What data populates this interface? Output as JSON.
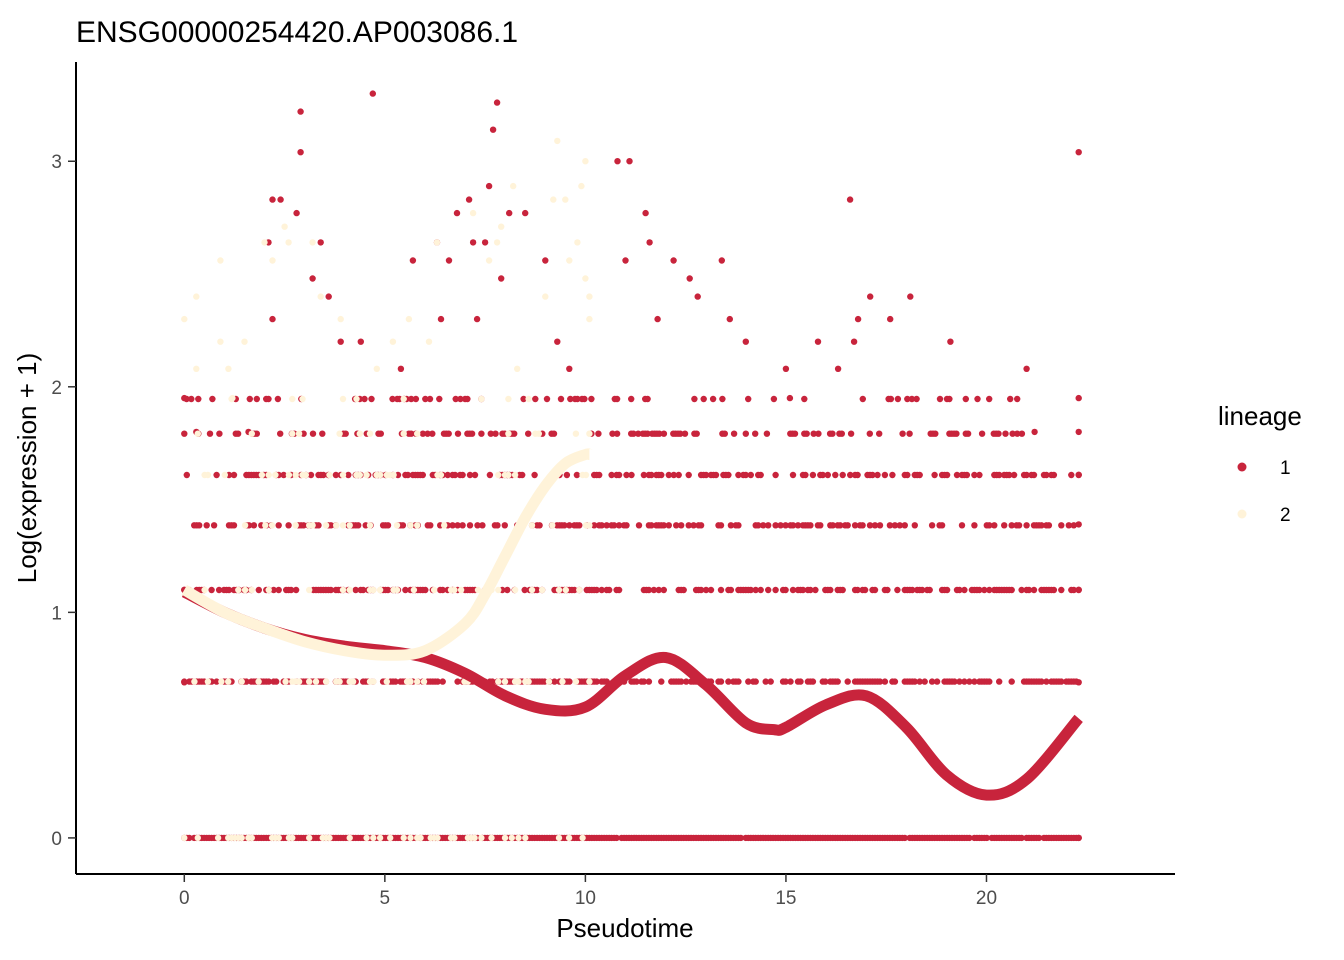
{
  "chart_data": {
    "type": "scatter",
    "title": "ENSG00000254420.AP003086.1",
    "xlabel": "Pseudotime",
    "ylabel": "Log(expression + 1)",
    "xlim": [
      -2.7,
      24.7
    ],
    "ylim": [
      -0.16,
      3.44
    ],
    "xticks": [
      0,
      5,
      10,
      15,
      20
    ],
    "yticks": [
      0,
      1,
      2,
      3
    ],
    "grid": false,
    "legend": {
      "title": "lineage",
      "position": "right",
      "entries": [
        {
          "label": "1",
          "color": "#c8243c"
        },
        {
          "label": "2",
          "color": "#fff3d9"
        }
      ]
    },
    "expression_levels": [
      0,
      0.693,
      1.099,
      1.386,
      1.609,
      1.792,
      1.946,
      2.079,
      2.197,
      2.303,
      2.398,
      2.485,
      2.565,
      2.639,
      2.708,
      2.773,
      2.833,
      2.89,
      2.996,
      3.045,
      3.091,
      3.135,
      3.219,
      3.258,
      3.296
    ],
    "series": [
      {
        "name": "1",
        "color": "#c8243c",
        "x_range": [
          0,
          22.3
        ],
        "points": [
          [
            0,
            0.69
          ],
          [
            0,
            1.1
          ],
          [
            0,
            1.95
          ],
          [
            0.3,
            1.8
          ],
          [
            1.6,
            1.8
          ],
          [
            2.2,
            2.3
          ],
          [
            2.1,
            2.64
          ],
          [
            2.2,
            2.83
          ],
          [
            2.4,
            2.83
          ],
          [
            2.8,
            2.77
          ],
          [
            2.9,
            3.22
          ],
          [
            2.9,
            3.04
          ],
          [
            3.2,
            2.48
          ],
          [
            3.4,
            2.64
          ],
          [
            3.6,
            2.4
          ],
          [
            3.9,
            2.2
          ],
          [
            4.4,
            2.2
          ],
          [
            4.7,
            3.3
          ],
          [
            5.4,
            2.08
          ],
          [
            5.7,
            2.56
          ],
          [
            6.3,
            2.64
          ],
          [
            6.4,
            2.3
          ],
          [
            6.6,
            2.56
          ],
          [
            6.8,
            2.77
          ],
          [
            7.1,
            2.83
          ],
          [
            7.2,
            2.64
          ],
          [
            7.3,
            2.3
          ],
          [
            7.5,
            2.64
          ],
          [
            7.6,
            2.89
          ],
          [
            7.7,
            3.14
          ],
          [
            7.8,
            3.26
          ],
          [
            7.9,
            2.48
          ],
          [
            8.1,
            2.77
          ],
          [
            8.5,
            2.77
          ],
          [
            9.0,
            2.56
          ],
          [
            9.3,
            2.2
          ],
          [
            9.6,
            2.08
          ],
          [
            10.8,
            3.0
          ],
          [
            11.1,
            3.0
          ],
          [
            11.0,
            2.56
          ],
          [
            11.5,
            2.77
          ],
          [
            11.6,
            2.64
          ],
          [
            11.8,
            2.3
          ],
          [
            12.2,
            2.56
          ],
          [
            12.6,
            2.48
          ],
          [
            12.8,
            2.4
          ],
          [
            13.4,
            2.56
          ],
          [
            13.6,
            2.3
          ],
          [
            14.0,
            2.2
          ],
          [
            15.0,
            2.08
          ],
          [
            15.1,
            1.95
          ],
          [
            15.8,
            2.2
          ],
          [
            16.3,
            2.08
          ],
          [
            16.7,
            2.2
          ],
          [
            16.6,
            2.83
          ],
          [
            16.8,
            2.3
          ],
          [
            17.1,
            2.4
          ],
          [
            17.6,
            2.3
          ],
          [
            18.1,
            2.4
          ],
          [
            19.1,
            2.2
          ],
          [
            21.0,
            2.08
          ],
          [
            21.2,
            1.8
          ],
          [
            22.3,
            3.04
          ],
          [
            22.3,
            1.95
          ],
          [
            22.3,
            1.8
          ],
          [
            22.3,
            1.61
          ],
          [
            22.3,
            1.39
          ],
          [
            22.3,
            1.1
          ],
          [
            22.3,
            0.69
          ],
          [
            22.3,
            0
          ]
        ]
      },
      {
        "name": "2",
        "color": "#fff3d9",
        "x_range": [
          0,
          10.1
        ],
        "points": [
          [
            0,
            2.3
          ],
          [
            0.3,
            2.08
          ],
          [
            0.3,
            2.4
          ],
          [
            0.9,
            2.56
          ],
          [
            0.9,
            2.2
          ],
          [
            1.1,
            2.08
          ],
          [
            1.2,
            1.95
          ],
          [
            1.5,
            2.2
          ],
          [
            2.0,
            2.64
          ],
          [
            2.2,
            2.56
          ],
          [
            2.5,
            2.71
          ],
          [
            2.6,
            2.64
          ],
          [
            3.2,
            2.64
          ],
          [
            3.4,
            2.4
          ],
          [
            3.9,
            2.3
          ],
          [
            4.8,
            2.08
          ],
          [
            5.2,
            2.2
          ],
          [
            5.6,
            2.3
          ],
          [
            6.1,
            2.2
          ],
          [
            6.3,
            2.64
          ],
          [
            7.2,
            2.77
          ],
          [
            7.6,
            2.56
          ],
          [
            7.8,
            2.64
          ],
          [
            7.9,
            2.71
          ],
          [
            8.2,
            2.89
          ],
          [
            8.3,
            2.08
          ],
          [
            9.0,
            2.4
          ],
          [
            9.2,
            2.83
          ],
          [
            9.3,
            3.09
          ],
          [
            9.5,
            2.83
          ],
          [
            9.6,
            2.56
          ],
          [
            9.8,
            2.64
          ],
          [
            9.9,
            2.89
          ],
          [
            10.0,
            2.48
          ],
          [
            10.0,
            3.0
          ],
          [
            10.1,
            2.4
          ],
          [
            10.1,
            2.3
          ]
        ]
      }
    ],
    "fitted_curves": [
      {
        "lineage": "1",
        "color": "#c8243c",
        "x": [
          0,
          1,
          2,
          3,
          4,
          5,
          6,
          7,
          8,
          9,
          10,
          11,
          12,
          13,
          14,
          14.7,
          15,
          16,
          17,
          18,
          19,
          20,
          21,
          22.3
        ],
        "y": [
          1.09,
          1.0,
          0.93,
          0.88,
          0.85,
          0.83,
          0.8,
          0.73,
          0.63,
          0.57,
          0.58,
          0.72,
          0.8,
          0.68,
          0.51,
          0.48,
          0.49,
          0.59,
          0.63,
          0.49,
          0.28,
          0.19,
          0.26,
          0.53
        ]
      },
      {
        "lineage": "2",
        "color": "#fff3d9",
        "x": [
          0,
          1,
          2,
          3,
          4,
          5,
          6,
          7,
          7.5,
          8,
          8.5,
          9,
          9.5,
          10,
          10.1
        ],
        "y": [
          1.1,
          1.0,
          0.93,
          0.87,
          0.83,
          0.81,
          0.83,
          0.95,
          1.08,
          1.25,
          1.42,
          1.56,
          1.66,
          1.7,
          1.7
        ]
      }
    ]
  }
}
